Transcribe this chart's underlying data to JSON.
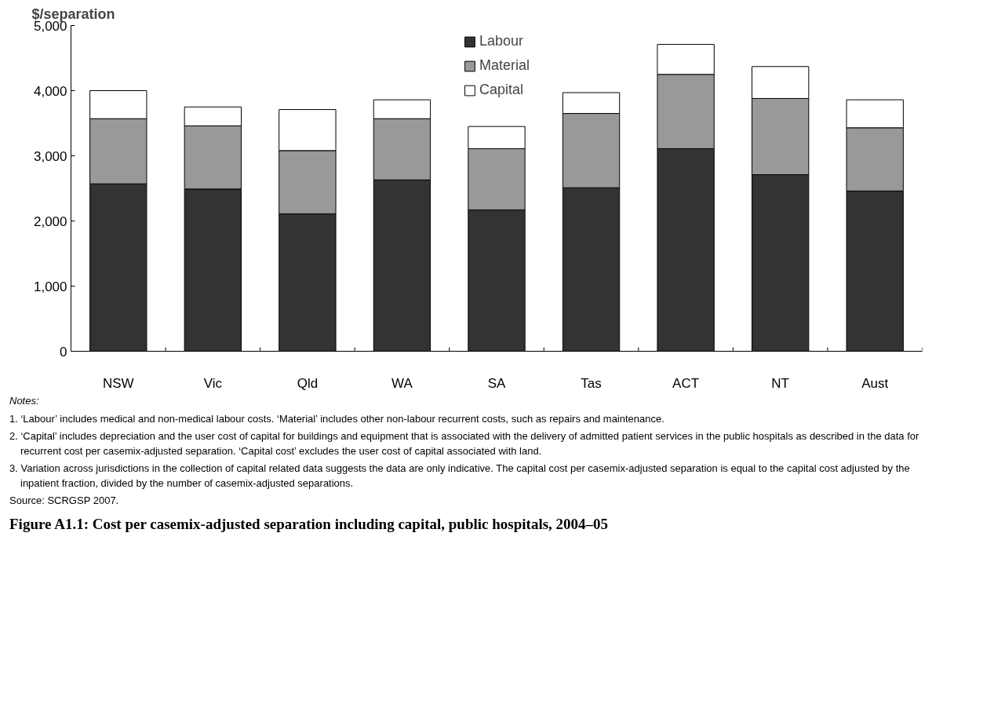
{
  "chart_data": {
    "type": "bar",
    "title": "Figure A1.1: Cost per casemix-adjusted separation including capital, public hospitals, 2004–05",
    "ylabel": "$/separation",
    "categories": [
      "NSW",
      "Vic",
      "Qld",
      "WA",
      "SA",
      "Tas",
      "ACT",
      "NT",
      "Aust"
    ],
    "stacked": true,
    "series": [
      {
        "name": "Labour",
        "color": "#333333",
        "values": [
          2570,
          2490,
          2110,
          2630,
          2170,
          2510,
          3110,
          2710,
          2460
        ]
      },
      {
        "name": "Material",
        "color": "#999999",
        "values": [
          1000,
          970,
          970,
          940,
          940,
          1140,
          1140,
          1170,
          970
        ]
      },
      {
        "name": "Capital",
        "color": "#ffffff",
        "values": [
          430,
          290,
          630,
          290,
          340,
          320,
          460,
          490,
          430
        ]
      }
    ],
    "ylim": [
      0,
      5000
    ],
    "yticks": [
      0,
      {
        "value": 1000,
        "label": "1,000"
      },
      {
        "value": 2000,
        "label": "2,000"
      },
      {
        "value": 3000,
        "label": "3,000"
      },
      {
        "value": 4000,
        "label": "4,000"
      },
      {
        "value": 5000,
        "label": "5,000"
      }
    ],
    "grid": false,
    "legend": "top",
    "annotations": [
      "Notes:",
      "1. ‘Labour’ includes medical and non-medical labour costs. ‘Material’ includes other non-labour recurrent costs, such as repairs and maintenance.",
      "2. ‘Capital’ includes depreciation and the user cost of capital for buildings and equipment that is associated with the delivery of admitted patient services in the public hospitals as described in the data for recurrent cost per casemix-adjusted separation. ‘Capital cost’ excludes the user cost of capital associated with land.",
      "3. Variation across jurisdictions in the collection of capital related data suggests the data are only indicative. The capital cost per casemix-adjusted separation is equal to the capital cost adjusted by the inpatient fraction, divided by the number of casemix-adjusted separations.",
      "Source: SCRGSP 2007."
    ]
  }
}
